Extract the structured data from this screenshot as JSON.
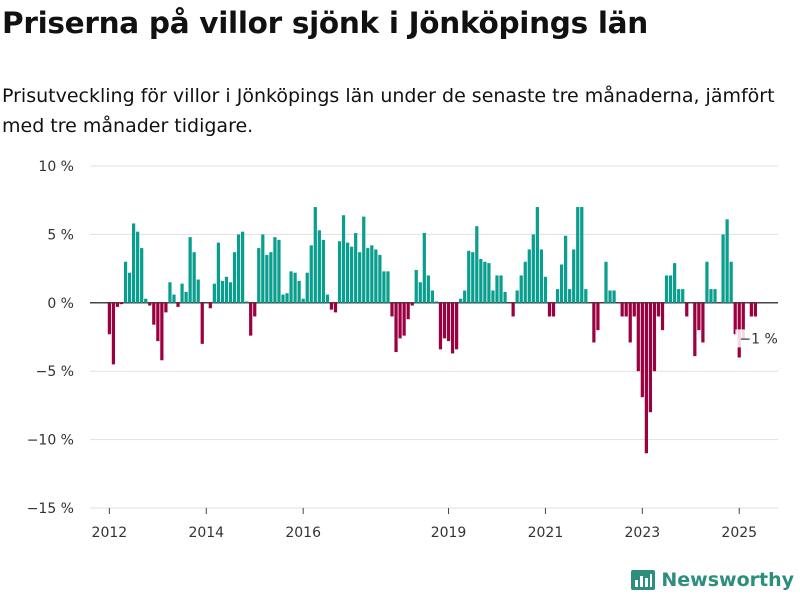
{
  "title": "Priserna på villor sjönk i Jönköpings län",
  "subtitle": "Prisutveckling för villor i Jönköpings län under de senaste tre månaderna, jämfört med tre månader tidigare.",
  "brand": "Newsworthy",
  "colors": {
    "positive": "#0a9e8e",
    "negative": "#9b0041",
    "zero_line": "#444444",
    "grid": "#e1e1e1",
    "brand": "#2d8e7e"
  },
  "chart_data": {
    "type": "bar",
    "ylim": [
      -15,
      10
    ],
    "yticks": [
      10,
      5,
      0,
      -5,
      -10,
      -15
    ],
    "ytick_labels": [
      "10 %",
      "5 %",
      "0 %",
      "−5 %",
      "−10 %",
      "−15 %"
    ],
    "xlim": [
      2011.6,
      2025.8
    ],
    "xticks": [
      2012,
      2014,
      2016,
      2019,
      2021,
      2023,
      2025
    ],
    "xtick_labels": [
      "2012",
      "2014",
      "2016",
      "2019",
      "2021",
      "2023",
      "2025"
    ],
    "bar_width_months": 0.8,
    "grid": true,
    "last_value_label": "−1 %",
    "start": "2012-01",
    "values": [
      -2.3,
      -4.5,
      -0.3,
      -0.1,
      3.0,
      2.2,
      5.8,
      5.2,
      4.0,
      0.3,
      -0.2,
      -1.6,
      -2.8,
      -4.2,
      -0.7,
      1.5,
      0.6,
      -0.3,
      1.4,
      0.8,
      4.8,
      3.7,
      1.7,
      -3.0,
      0.0,
      -0.4,
      1.4,
      4.4,
      1.6,
      1.9,
      1.5,
      3.7,
      5.0,
      5.2,
      0.1,
      -2.4,
      -1.0,
      4.0,
      5.0,
      3.5,
      3.7,
      4.8,
      4.6,
      0.6,
      0.7,
      2.3,
      2.2,
      1.6,
      0.3,
      2.2,
      4.2,
      7.0,
      5.3,
      4.6,
      0.6,
      -0.5,
      -0.7,
      4.5,
      6.4,
      4.4,
      4.1,
      5.1,
      3.7,
      6.3,
      4.0,
      4.2,
      3.9,
      3.5,
      2.3,
      2.3,
      -1.0,
      -3.6,
      -2.6,
      -2.4,
      -1.2,
      -0.2,
      2.4,
      1.5,
      5.1,
      2.0,
      0.9,
      0.1,
      -3.4,
      -2.6,
      -2.8,
      -3.7,
      -3.4,
      0.3,
      0.9,
      3.8,
      3.7,
      5.6,
      3.2,
      3.0,
      2.9,
      0.9,
      2.0,
      2.0,
      0.8,
      0.0,
      -1.0,
      0.9,
      2.0,
      3.0,
      3.9,
      5.0,
      7.0,
      3.9,
      1.9,
      -1.0,
      -1.0,
      1.0,
      2.8,
      4.9,
      1.0,
      3.9,
      7.0,
      7.0,
      1.0,
      0.0,
      -2.9,
      -2.0,
      0.0,
      3.0,
      0.9,
      0.9,
      0.0,
      -1.0,
      -1.0,
      -2.9,
      -1.0,
      -5.0,
      -6.9,
      -11.0,
      -8.0,
      -5.0,
      -1.0,
      -2.0,
      2.0,
      2.0,
      2.9,
      1.0,
      1.0,
      -1.0,
      0.0,
      -3.9,
      -2.0,
      -2.9,
      3.0,
      1.0,
      1.0,
      0.0,
      5.0,
      6.1,
      3.0,
      -2.3,
      -4.0,
      -2.6,
      0.0,
      -1.0,
      -1.0
    ]
  }
}
